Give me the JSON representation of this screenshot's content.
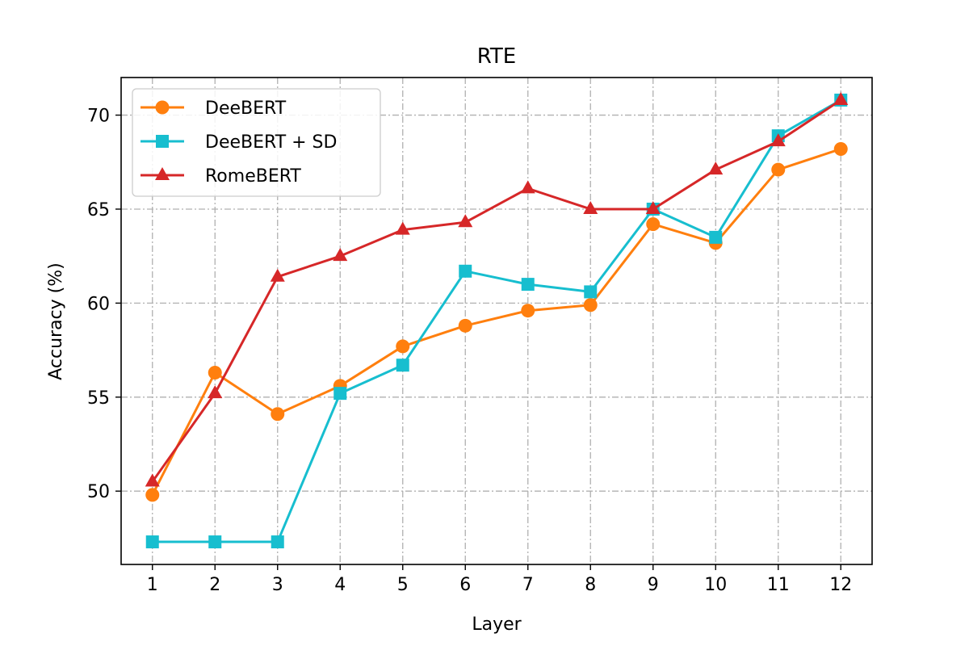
{
  "chart_data": {
    "type": "line",
    "title": "RTE",
    "xlabel": "Layer",
    "ylabel": "Accuracy (%)",
    "x": [
      1,
      2,
      3,
      4,
      5,
      6,
      7,
      8,
      9,
      10,
      11,
      12
    ],
    "xlim": [
      0.5,
      12.5
    ],
    "ylim": [
      46.1,
      72.0
    ],
    "yticks": [
      50,
      55,
      60,
      65,
      70
    ],
    "grid": true,
    "legend_position": "top-left",
    "series": [
      {
        "name": "DeeBERT",
        "color": "#ff7f0e",
        "marker": "circle",
        "values": [
          49.8,
          56.3,
          54.1,
          55.6,
          57.7,
          58.8,
          59.6,
          59.9,
          64.2,
          63.2,
          67.1,
          68.2
        ]
      },
      {
        "name": "DeeBERT + SD",
        "color": "#17becf",
        "marker": "square",
        "values": [
          47.3,
          47.3,
          47.3,
          55.2,
          56.7,
          61.7,
          61.0,
          60.6,
          65.0,
          63.5,
          68.9,
          70.8
        ]
      },
      {
        "name": "RomeBERT",
        "color": "#d62728",
        "marker": "triangle",
        "values": [
          50.5,
          55.2,
          61.4,
          62.5,
          63.9,
          64.3,
          66.1,
          65.0,
          65.0,
          67.1,
          68.6,
          70.8
        ]
      }
    ]
  }
}
